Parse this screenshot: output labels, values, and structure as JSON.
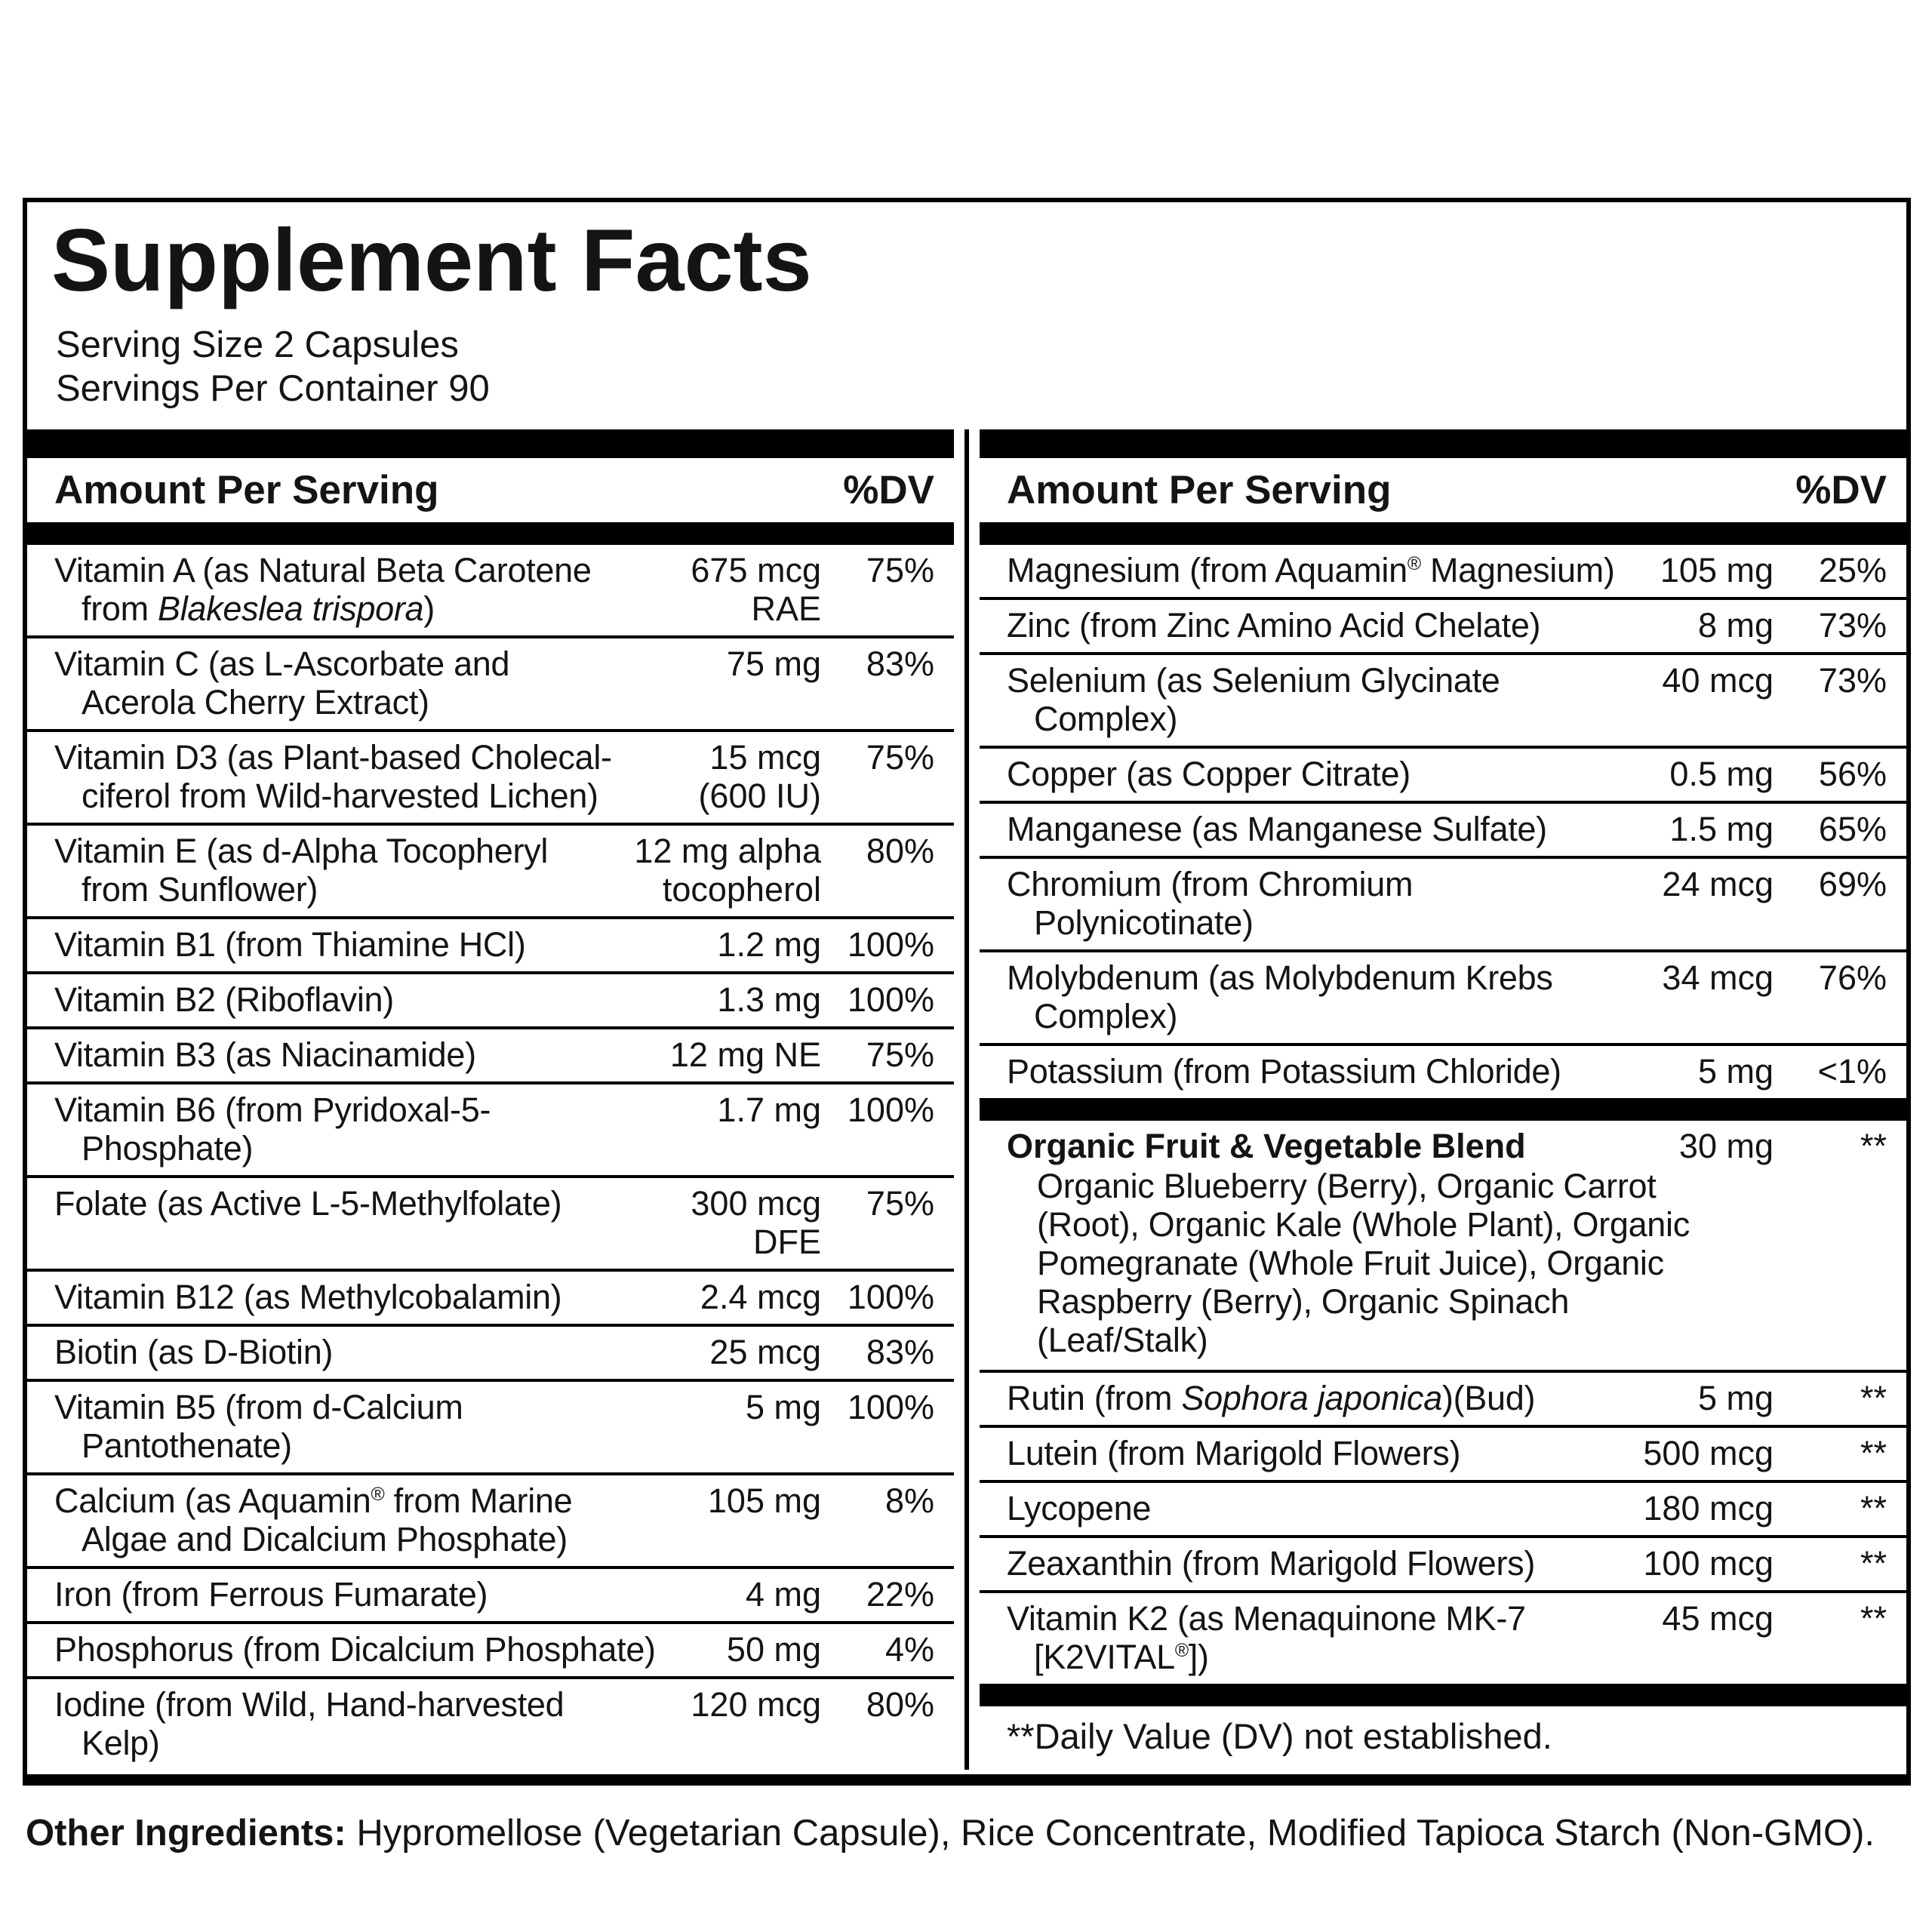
{
  "title": "Supplement Facts",
  "serving_size": "Serving Size 2 Capsules",
  "servings_per_container": "Servings Per Container 90",
  "column_header": {
    "amount": "Amount Per Serving",
    "dv": "%DV"
  },
  "left_column": {
    "rows": [
      {
        "name": "Vitamin A (as Natural Beta Carotene\nfrom *Blakeslea trispora*)",
        "amount": "675 mcg\nRAE",
        "dv": "75%"
      },
      {
        "name": "Vitamin C (as L-Ascorbate and\nAcerola Cherry Extract)",
        "amount": "75 mg",
        "dv": "83%"
      },
      {
        "name": "Vitamin D3 (as Plant-based Cholecal-\nciferol from Wild-harvested Lichen)",
        "amount": "15 mcg\n(600 IU)",
        "dv": "75%"
      },
      {
        "name": "Vitamin E (as d-Alpha Tocopheryl\nfrom Sunflower)",
        "amount": "12 mg alpha\ntocopherol",
        "dv": "80%"
      },
      {
        "name": "Vitamin B1 (from Thiamine HCl)",
        "amount": "1.2 mg",
        "dv": "100%"
      },
      {
        "name": "Vitamin B2 (Riboflavin)",
        "amount": "1.3 mg",
        "dv": "100%"
      },
      {
        "name": "Vitamin B3 (as Niacinamide)",
        "amount": "12 mg NE",
        "dv": "75%"
      },
      {
        "name": "Vitamin B6 (from Pyridoxal-5-\nPhosphate)",
        "amount": "1.7 mg",
        "dv": "100%"
      },
      {
        "name": "Folate (as Active L-5-Methylfolate)",
        "amount": "300 mcg\nDFE",
        "dv": "75%"
      },
      {
        "name": "Vitamin B12 (as Methylcobalamin)",
        "amount": "2.4 mcg",
        "dv": "100%"
      },
      {
        "name": "Biotin (as D-Biotin)",
        "amount": "25 mcg",
        "dv": "83%"
      },
      {
        "name": "Vitamin B5 (from d-Calcium\nPantothenate)",
        "amount": "5 mg",
        "dv": "100%"
      },
      {
        "name": "Calcium (as Aquamin® from Marine\nAlgae and Dicalcium Phosphate)",
        "amount": "105 mg",
        "dv": "8%"
      },
      {
        "name": "Iron (from Ferrous Fumarate)",
        "amount": "4 mg",
        "dv": "22%"
      },
      {
        "name": "Phosphorus (from Dicalcium Phosphate)",
        "amount": "50 mg",
        "dv": "4%"
      },
      {
        "name": "Iodine (from Wild, Hand-harvested\nKelp)",
        "amount": "120 mcg",
        "dv": "80%",
        "noline": true
      }
    ]
  },
  "right_column": {
    "rows": [
      {
        "name": "Magnesium (from Aquamin® Magnesium)",
        "amount": "105 mg",
        "dv": "25%"
      },
      {
        "name": "Zinc (from Zinc Amino Acid Chelate)",
        "amount": "8 mg",
        "dv": "73%"
      },
      {
        "name": "Selenium (as Selenium Glycinate\nComplex)",
        "amount": "40 mcg",
        "dv": "73%"
      },
      {
        "name": "Copper (as Copper Citrate)",
        "amount": "0.5 mg",
        "dv": "56%"
      },
      {
        "name": "Manganese (as Manganese Sulfate)",
        "amount": "1.5 mg",
        "dv": "65%"
      },
      {
        "name": "Chromium (from Chromium\nPolynicotinate)",
        "amount": "24 mcg",
        "dv": "69%"
      },
      {
        "name": "Molybdenum (as Molybdenum Krebs\nComplex)",
        "amount": "34 mcg",
        "dv": "76%"
      },
      {
        "name": "Potassium (from Potassium Chloride)",
        "amount": "5 mg",
        "dv": "<1%",
        "noline": true
      },
      {
        "type": "bar"
      },
      {
        "name": "Organic Fruit & Vegetable Blend",
        "amount": "30 mg",
        "dv": "**",
        "bold": true,
        "desc": "Organic Blueberry (Berry), Organic Carrot\n(Root), Organic Kale (Whole Plant), Organic\nPomegranate (Whole Fruit Juice), Organic\nRaspberry (Berry), Organic Spinach\n(Leaf/Stalk)"
      },
      {
        "name": "Rutin (from *Sophora japonica*)(Bud)",
        "amount": "5 mg",
        "dv": "**"
      },
      {
        "name": "Lutein (from Marigold Flowers)",
        "amount": "500 mcg",
        "dv": "**"
      },
      {
        "name": "Lycopene",
        "amount": "180 mcg",
        "dv": "**"
      },
      {
        "name": "Zeaxanthin (from Marigold Flowers)",
        "amount": "100 mcg",
        "dv": "**"
      },
      {
        "name": "Vitamin K2 (as Menaquinone MK-7\n[K2VITAL®])",
        "amount": "45 mcg",
        "dv": "**",
        "noline": true
      },
      {
        "type": "bar"
      },
      {
        "type": "note",
        "text": "**Daily Value (DV) not established."
      }
    ]
  },
  "other_ingredients": {
    "label": "Other Ingredients:",
    "text": " Hypromellose (Vegetarian Capsule), Rice Concentrate, Modified Tapioca Starch (Non-GMO)."
  },
  "colors": {
    "ink": "#141414",
    "bar": "#000000",
    "background": "#ffffff"
  }
}
